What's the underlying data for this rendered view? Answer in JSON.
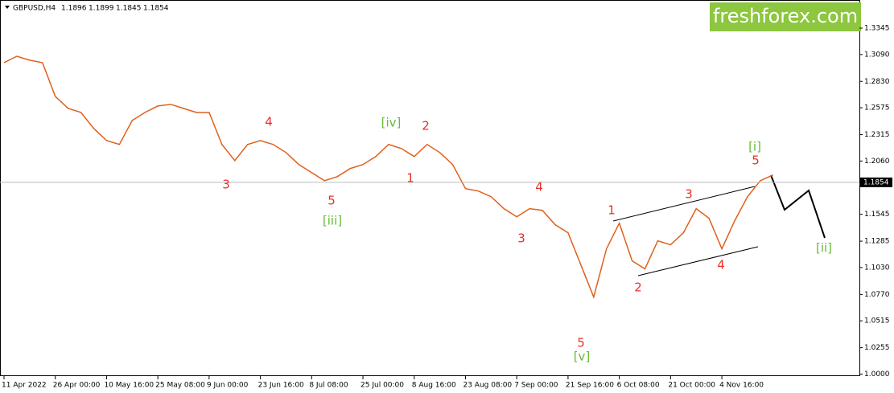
{
  "chart_data": {
    "type": "line",
    "symbol": "GBPUSD,H4",
    "ohlc": [
      1.1896,
      1.1899,
      1.1845,
      1.1854
    ],
    "logo": "freshforex.com",
    "categories": [
      "11 Apr 2022",
      null,
      null,
      null,
      "26 Apr 00:00",
      null,
      null,
      null,
      "10 May 16:00",
      null,
      null,
      null,
      "25 May 08:00",
      null,
      null,
      null,
      "9 Jun 00:00",
      null,
      null,
      null,
      "23 Jun 16:00",
      null,
      null,
      null,
      "8 Jul 08:00",
      null,
      null,
      null,
      "25 Jul 00:00",
      null,
      null,
      null,
      "8 Aug 16:00",
      null,
      null,
      null,
      "23 Aug 08:00",
      null,
      null,
      null,
      "7 Sep 00:00",
      null,
      null,
      null,
      "21 Sep 16:00",
      null,
      null,
      null,
      "6 Oct 08:00",
      null,
      null,
      null,
      "21 Oct 00:00",
      null,
      null,
      null,
      "4 Nov 16:00",
      null,
      null,
      null,
      null
    ],
    "series": [
      {
        "name": "GBPUSD",
        "color": "#e0601a",
        "values": [
          1.3011,
          1.3073,
          1.3035,
          1.3011,
          1.2685,
          1.2569,
          1.253,
          1.2375,
          1.2258,
          1.222,
          1.2452,
          1.253,
          1.2592,
          1.2608,
          1.2569,
          1.253,
          1.253,
          1.222,
          1.2064,
          1.222,
          1.2258,
          1.222,
          1.2142,
          1.2026,
          1.1948,
          1.187,
          1.1909,
          1.1987,
          1.2026,
          1.2103,
          1.222,
          1.2181,
          1.2103,
          1.222,
          1.2142,
          1.2026,
          1.1793,
          1.177,
          1.1715,
          1.1599,
          1.1521,
          1.1599,
          1.1583,
          1.1444,
          1.1366,
          1.1056,
          1.0745,
          1.1211,
          1.1459,
          1.1094,
          1.1017,
          1.1288,
          1.125,
          1.1366,
          1.1599,
          1.1506,
          1.1211,
          1.1482,
          1.1715,
          1.187,
          1.1925
        ]
      }
    ],
    "ylim": [
      0.998,
      1.3617
    ],
    "yticks": [
      1.3345,
      {
        "value": 1.309,
        "label": "1.3090"
      },
      {
        "value": 1.283,
        "label": "1.2830"
      },
      1.2575,
      1.2315,
      {
        "value": 1.206,
        "label": "1.2060"
      },
      1.1545,
      1.1285,
      {
        "value": 1.103,
        "label": "1.1030"
      },
      {
        "value": 1.077,
        "label": "1.0770"
      },
      1.0515,
      1.0255,
      {
        "value": 1,
        "label": "1.0000"
      }
    ],
    "annotations": [
      {
        "text": "3",
        "color": "#e8302a"
      },
      {
        "text": "5",
        "color": "#e8302a"
      },
      {
        "text": "[iii]",
        "color": "#66bb33"
      },
      {
        "text": "4",
        "color": "#e8302a"
      },
      {
        "text": "[iv]",
        "color": "#66bb33"
      },
      {
        "text": "1",
        "color": "#e8302a"
      },
      {
        "text": "2",
        "color": "#e8302a"
      },
      {
        "text": "4",
        "color": "#e8302a"
      },
      {
        "text": "3",
        "color": "#e8302a"
      },
      {
        "text": "5",
        "color": "#e8302a"
      },
      {
        "text": "[v]",
        "color": "#66bb33"
      },
      {
        "text": "1",
        "color": "#e8302a"
      },
      {
        "text": "2",
        "color": "#e8302a"
      },
      {
        "text": "3",
        "color": "#e8302a"
      },
      {
        "text": "4",
        "color": "#e8302a"
      },
      {
        "text": "5",
        "color": "#e8302a"
      },
      {
        "text": "[i]",
        "color": "#66bb33"
      },
      {
        "text": "[ii]",
        "color": "#66bb33"
      }
    ]
  }
}
